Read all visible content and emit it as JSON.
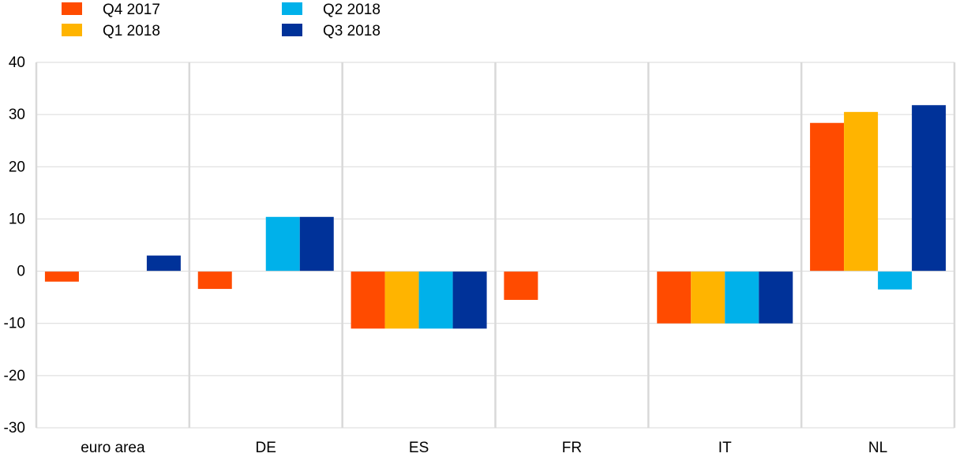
{
  "chart_data": {
    "type": "bar",
    "categories": [
      "euro area",
      "DE",
      "ES",
      "FR",
      "IT",
      "NL"
    ],
    "series": [
      {
        "name": "Q4 2017",
        "color": "#ff4b00",
        "values": [
          -2,
          -3.4,
          -11,
          -5.5,
          -10,
          28.4
        ]
      },
      {
        "name": "Q1 2018",
        "color": "#ffb400",
        "values": [
          0,
          0,
          -11,
          0,
          -10,
          30.5
        ]
      },
      {
        "name": "Q2 2018",
        "color": "#00b1ea",
        "values": [
          0,
          10.4,
          -11,
          0,
          -10,
          -3.5
        ]
      },
      {
        "name": "Q3 2018",
        "color": "#003299",
        "values": [
          3,
          10.4,
          -11,
          0,
          -10,
          31.8
        ]
      }
    ],
    "ylim": [
      -30,
      40
    ],
    "yticks": [
      -30,
      -20,
      -10,
      0,
      10,
      20,
      30,
      40
    ],
    "grid": true,
    "legend_position": "top-left"
  }
}
